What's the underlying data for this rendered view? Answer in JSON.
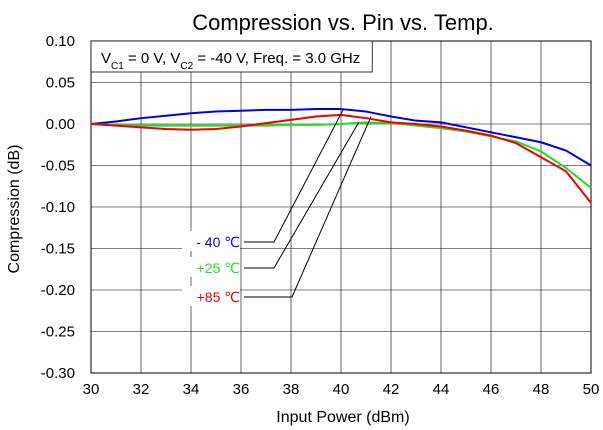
{
  "chart_data": {
    "type": "line",
    "title": "Compression vs. Pin vs. Temp.",
    "annotation": {
      "vc1_prefix": "V",
      "vc1_sub": "C1",
      "vc1_value": " = 0 V, ",
      "vc2_prefix": "V",
      "vc2_sub": "C2",
      "vc2_value": " = -40 V, Freq. = 3.0 GHz"
    },
    "xlabel": "Input Power (dBm)",
    "ylabel": "Compression (dB)",
    "xlim": [
      30,
      50
    ],
    "ylim": [
      -0.3,
      0.1
    ],
    "xticks": [
      30,
      32,
      34,
      36,
      38,
      40,
      42,
      44,
      46,
      48,
      50
    ],
    "yticks": [
      0.1,
      0.05,
      0.0,
      -0.05,
      -0.1,
      -0.15,
      -0.2,
      -0.25,
      -0.3
    ],
    "xtick_labels": [
      "30",
      "32",
      "34",
      "36",
      "38",
      "40",
      "42",
      "44",
      "46",
      "48",
      "50"
    ],
    "ytick_labels": [
      "0.10",
      "0.05",
      "0.00",
      "-0.05",
      "-0.10",
      "-0.15",
      "-0.20",
      "-0.25",
      "-0.30"
    ],
    "grid": true,
    "x": [
      30,
      31,
      32,
      33,
      34,
      35,
      36,
      37,
      38,
      39,
      40,
      41,
      42,
      43,
      44,
      45,
      46,
      47,
      48,
      49,
      50
    ],
    "series": [
      {
        "name": "- 40 ℃",
        "color": "#0000dd",
        "values": [
          0.0,
          0.003,
          0.007,
          0.01,
          0.013,
          0.015,
          0.016,
          0.017,
          0.017,
          0.018,
          0.018,
          0.015,
          0.009,
          0.004,
          0.002,
          -0.004,
          -0.01,
          -0.016,
          -0.022,
          -0.032,
          -0.05
        ]
      },
      {
        "name": "+25 ℃",
        "color": "#22dd22",
        "values": [
          0.0,
          -0.001,
          -0.002,
          -0.002,
          -0.002,
          -0.002,
          -0.002,
          -0.002,
          -0.001,
          -0.001,
          0.0,
          0.002,
          0.001,
          -0.002,
          -0.005,
          -0.009,
          -0.015,
          -0.021,
          -0.033,
          -0.053,
          -0.077
        ]
      },
      {
        "name": "+85 ℃",
        "color": "#ee0000",
        "values": [
          0.0,
          -0.002,
          -0.004,
          -0.006,
          -0.007,
          -0.006,
          -0.003,
          0.001,
          0.005,
          0.009,
          0.011,
          0.007,
          0.002,
          0.0,
          -0.003,
          -0.008,
          -0.014,
          -0.023,
          -0.04,
          -0.057,
          -0.095
        ]
      }
    ],
    "legend": {
      "placement": "left-center, with leader lines to curves",
      "targets": [
        {
          "x": 40.1,
          "y": 0.018
        },
        {
          "x": 40.7,
          "y": 0.0015
        },
        {
          "x": 41.2,
          "y": 0.009
        }
      ]
    }
  }
}
